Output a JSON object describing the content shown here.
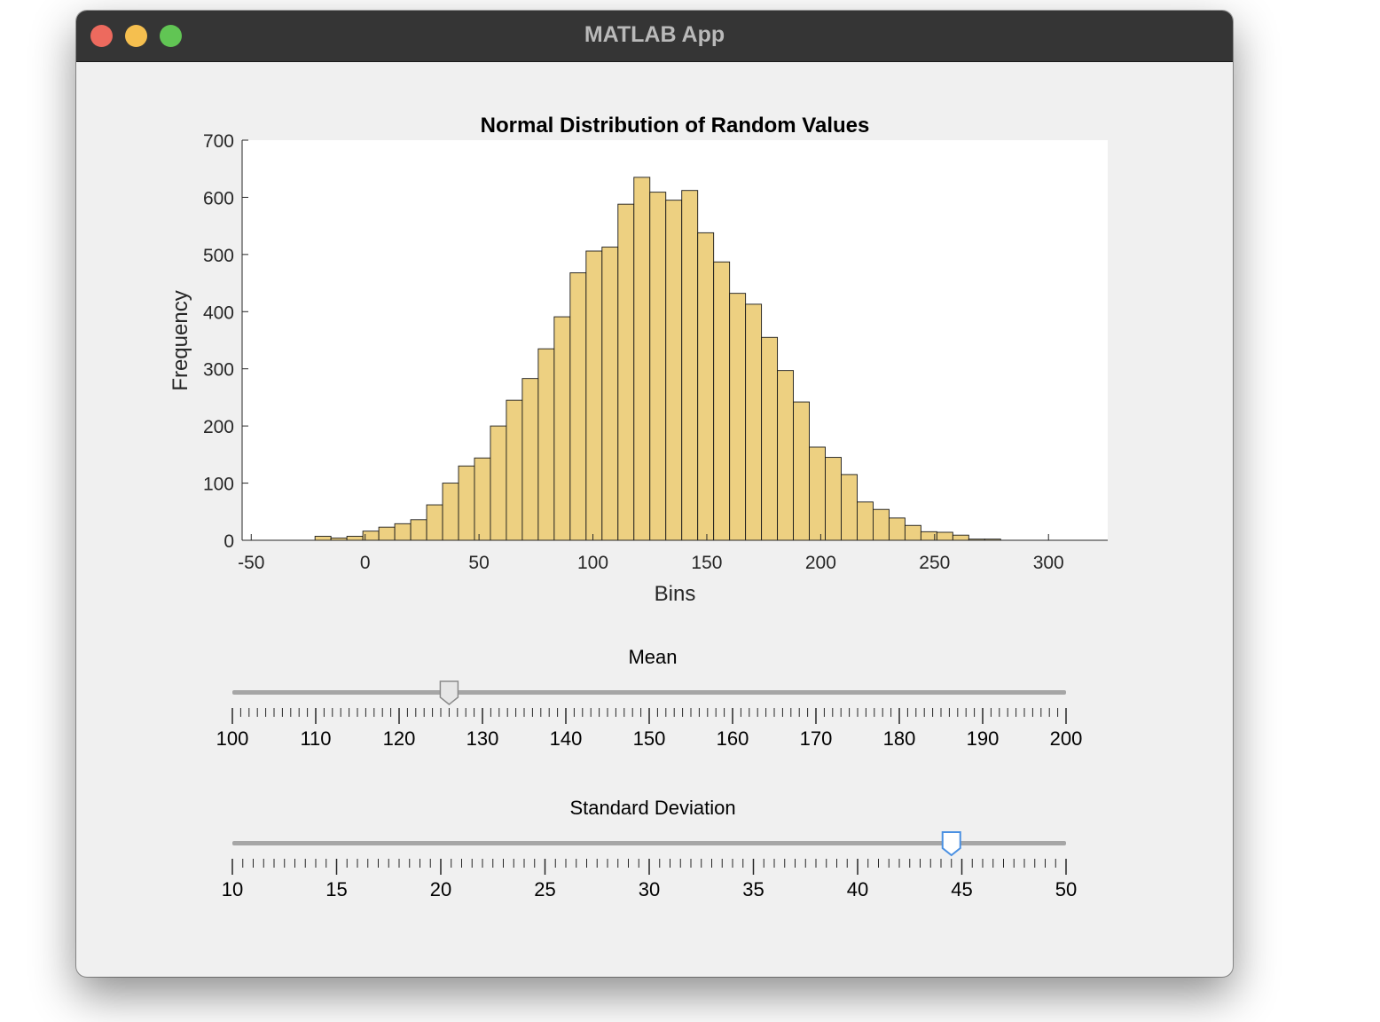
{
  "window": {
    "title": "MATLAB App"
  },
  "chart_data": {
    "type": "bar",
    "title": "Normal Distribution of Random Values",
    "xlabel": "Bins",
    "ylabel": "Frequency",
    "xlim": [
      -54,
      326
    ],
    "ylim": [
      0,
      700
    ],
    "xticks": [
      -50,
      0,
      50,
      100,
      150,
      200,
      250,
      300
    ],
    "yticks": [
      0,
      100,
      200,
      300,
      400,
      500,
      600,
      700
    ],
    "bin_width": 7,
    "bin_edges": [
      -22,
      -15,
      -8,
      -1,
      6,
      13,
      20,
      27,
      34,
      41,
      48,
      55,
      62,
      69,
      76,
      83,
      90,
      97,
      104,
      111,
      118,
      125,
      132,
      139,
      146,
      153,
      160,
      167,
      174,
      181,
      188,
      195,
      202,
      209,
      216,
      223,
      230,
      237,
      244,
      251,
      258,
      265,
      272,
      279
    ],
    "values": [
      7,
      4,
      7,
      16,
      23,
      29,
      36,
      62,
      100,
      130,
      144,
      200,
      245,
      283,
      335,
      391,
      468,
      506,
      513,
      588,
      635,
      609,
      595,
      612,
      538,
      487,
      432,
      413,
      355,
      297,
      242,
      163,
      145,
      115,
      67,
      54,
      39,
      26,
      15,
      14,
      9,
      2,
      2
    ],
    "bar_color": "#edd081",
    "grid": false
  },
  "mean_slider": {
    "label": "Mean",
    "min": 100,
    "max": 200,
    "value": 126,
    "tick_labels": [
      "100",
      "110",
      "120",
      "130",
      "140",
      "150",
      "160",
      "170",
      "180",
      "190",
      "200"
    ],
    "thumb_color": "#e6e6e6"
  },
  "std_slider": {
    "label": "Standard Deviation",
    "min": 10,
    "max": 50,
    "value": 44.5,
    "tick_labels": [
      "10",
      "15",
      "20",
      "25",
      "30",
      "35",
      "40",
      "45",
      "50"
    ],
    "thumb_color": "#4a90e2"
  }
}
